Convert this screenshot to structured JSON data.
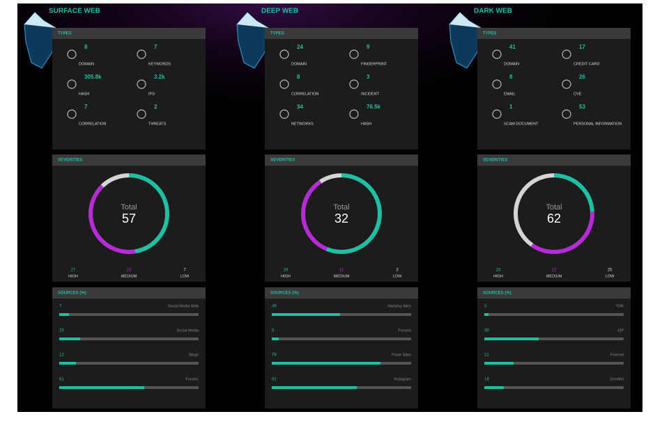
{
  "columns": [
    {
      "title": "SURFACE WEB",
      "types": {
        "title": "TYPES",
        "items": [
          {
            "value": "8",
            "label": "DOMAIN"
          },
          {
            "value": "7",
            "label": "KEYWORDS"
          },
          {
            "value": "305.8k",
            "label": "HASH"
          },
          {
            "value": "3.2k",
            "label": "IPS"
          },
          {
            "value": "7",
            "label": "CORRELATION"
          },
          {
            "value": "2",
            "label": "THREATS"
          }
        ]
      },
      "severities": {
        "title": "SEVERITIES",
        "total_label": "Total",
        "total": 57,
        "levels": [
          {
            "name": "HIGH",
            "value": 27,
            "color": "#1fbfa4"
          },
          {
            "name": "MEDIUM",
            "value": 23,
            "color": "#b62bd6"
          },
          {
            "name": "LOW",
            "value": 7,
            "color": "#d4d4d4"
          }
        ]
      },
      "sources": {
        "title": "SOURCES (%)",
        "items": [
          {
            "value": 7,
            "label": "Social Media Web"
          },
          {
            "value": 15,
            "label": "Social Media"
          },
          {
            "value": 12,
            "label": "Blogs"
          },
          {
            "value": 61,
            "label": "Forums"
          }
        ]
      }
    },
    {
      "title": "DEEP WEB",
      "types": {
        "title": "TYPES",
        "items": [
          {
            "value": "24",
            "label": "DOMAIN"
          },
          {
            "value": "9",
            "label": "FINGERPRINT"
          },
          {
            "value": "8",
            "label": "CORRELATION"
          },
          {
            "value": "3",
            "label": "INCIDENT"
          },
          {
            "value": "34",
            "label": "NETWORKS"
          },
          {
            "value": "76.5k",
            "label": "HASH"
          }
        ]
      },
      "severities": {
        "title": "SEVERITIES",
        "total_label": "Total",
        "total": 32,
        "levels": [
          {
            "name": "HIGH",
            "value": 18,
            "color": "#1fbfa4"
          },
          {
            "name": "MEDIUM",
            "value": 11,
            "color": "#b62bd6"
          },
          {
            "name": "LOW",
            "value": 3,
            "color": "#d4d4d4"
          }
        ]
      },
      "sources": {
        "title": "SOURCES (%)",
        "items": [
          {
            "value": 49,
            "label": "Hacking Sites"
          },
          {
            "value": 5,
            "label": "Forums"
          },
          {
            "value": 78,
            "label": "Paste Sites"
          },
          {
            "value": 61,
            "label": "Instagram"
          }
        ]
      }
    },
    {
      "title": "DARK WEB",
      "types": {
        "title": "TYPES",
        "items": [
          {
            "value": "41",
            "label": "DOMAIN"
          },
          {
            "value": "17",
            "label": "CREDIT CARD"
          },
          {
            "value": "8",
            "label": "EMAIL"
          },
          {
            "value": "26",
            "label": "CVE"
          },
          {
            "value": "1",
            "label": "SCAM DOCUMENT"
          },
          {
            "value": "53",
            "label": "PERSONAL INFORMATION"
          }
        ]
      },
      "severities": {
        "title": "SEVERITIES",
        "total_label": "Total",
        "total": 62,
        "levels": [
          {
            "name": "HIGH",
            "value": 15,
            "color": "#1fbfa4"
          },
          {
            "name": "MEDIUM",
            "value": 22,
            "color": "#b62bd6"
          },
          {
            "name": "LOW",
            "value": 25,
            "color": "#d4d4d4"
          }
        ]
      },
      "sources": {
        "title": "SOURCES (%)",
        "items": [
          {
            "value": 3,
            "label": "TOR"
          },
          {
            "value": 39,
            "label": "I2P"
          },
          {
            "value": 21,
            "label": "Freenet"
          },
          {
            "value": 14,
            "label": "ZeroNet"
          }
        ]
      }
    }
  ]
}
